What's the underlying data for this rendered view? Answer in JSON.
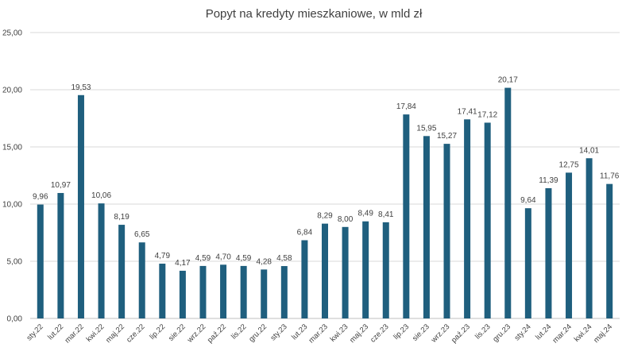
{
  "chart_data": {
    "type": "bar",
    "title": "Popyt na kredyty mieszkaniowe, w mld zł",
    "categories": [
      "sty.22",
      "lut.22",
      "mar.22",
      "kwi.22",
      "maj.22",
      "cze.22",
      "lip.22",
      "sie.22",
      "wrz.22",
      "paź.22",
      "lis.22",
      "gru.22",
      "sty.23",
      "lut.23",
      "mar.23",
      "kwi.23",
      "maj.23",
      "cze.23",
      "lip.23",
      "sie.23",
      "wrz.23",
      "paź.23",
      "lis.23",
      "gru.23",
      "sty.24",
      "lut.24",
      "mar.24",
      "kwi.24",
      "maj.24"
    ],
    "values": [
      9.96,
      10.97,
      19.53,
      10.06,
      8.19,
      6.65,
      4.79,
      4.17,
      4.59,
      4.7,
      4.59,
      4.28,
      4.58,
      6.84,
      8.29,
      8.0,
      8.49,
      8.41,
      17.84,
      15.95,
      15.27,
      17.41,
      17.12,
      20.17,
      9.64,
      11.39,
      12.75,
      14.01,
      11.76
    ],
    "data_labels": [
      "9,96",
      "10,97",
      "19,53",
      "10,06",
      "8,19",
      "6,65",
      "4,79",
      "4,17",
      "4,59",
      "4,70",
      "4,59",
      "4,28",
      "4,58",
      "6,84",
      "8,29",
      "8,00",
      "8,49",
      "8,41",
      "17,84",
      "15,95",
      "15,27",
      "17,41",
      "17,12",
      "20,17",
      "9,64",
      "11,39",
      "12,75",
      "14,01",
      "11,76"
    ],
    "y_ticks": [
      0,
      5,
      10,
      15,
      20,
      25
    ],
    "y_tick_labels": [
      "0,00",
      "5,00",
      "10,00",
      "15,00",
      "20,00",
      "25,00"
    ],
    "ylim": [
      0,
      25
    ],
    "grid": true,
    "bar_color": "#1f5f7e",
    "grid_color": "#d9d9d9",
    "legend": "none"
  }
}
